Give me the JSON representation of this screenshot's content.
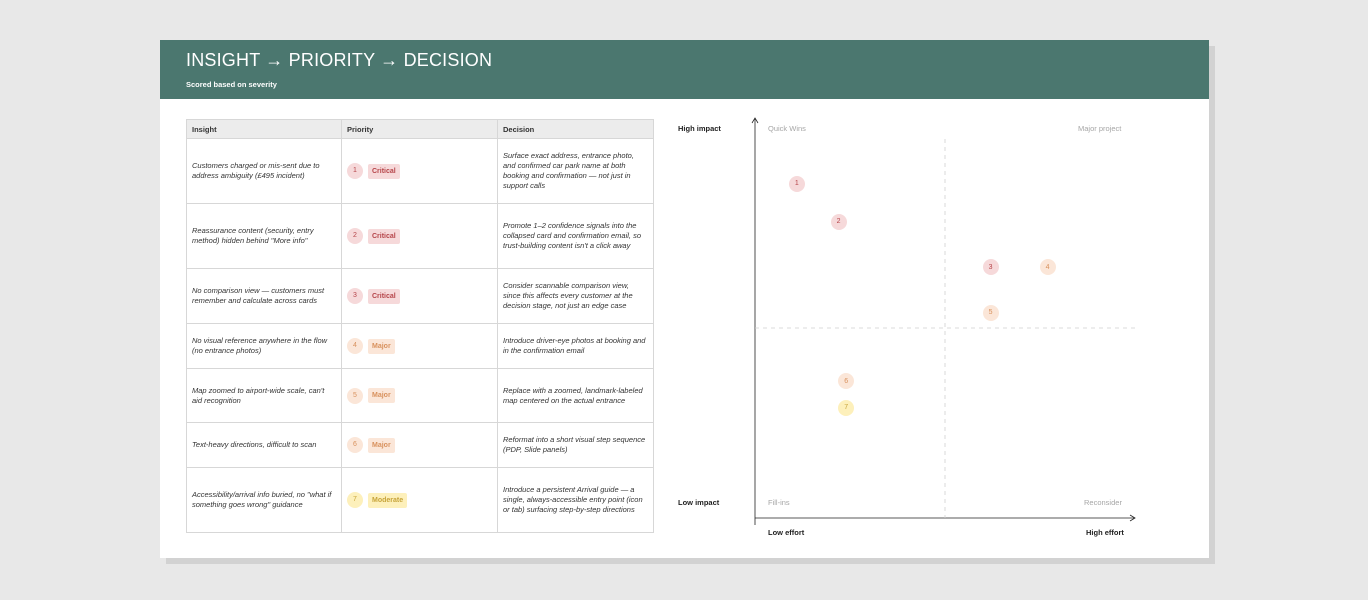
{
  "header": {
    "title": "INSIGHT → PRIORITY → DECISION",
    "subtitle": "Scored based on severity"
  },
  "table": {
    "columns": [
      "Insight",
      "Priority",
      "Decision"
    ],
    "rows": [
      {
        "num": "1",
        "insight": "Customers charged or mis-sent due to address ambiguity (£495 incident)",
        "priority": "Critical",
        "decision": "Surface exact address, entrance photo, and confirmed car park name at both booking and confirmation — not just in support calls"
      },
      {
        "num": "2",
        "insight": "Reassurance content (security, entry method) hidden behind \"More info\"",
        "priority": "Critical",
        "decision": "Promote 1–2 confidence signals into the collapsed card and confirmation email, so trust-building content isn't a click away"
      },
      {
        "num": "3",
        "insight": "No comparison view — customers must remember and calculate across cards",
        "priority": "Critical",
        "decision": "Consider scannable comparison view, since this affects every customer at the decision stage, not just an edge case"
      },
      {
        "num": "4",
        "insight": "No visual reference anywhere in the flow (no entrance photos)",
        "priority": "Major",
        "decision": "Introduce driver-eye photos at booking and in the confirmation email"
      },
      {
        "num": "5",
        "insight": "Map zoomed to airport-wide scale, can't aid recognition",
        "priority": "Major",
        "decision": "Replace with a zoomed, landmark-labeled map centered on the actual entrance"
      },
      {
        "num": "6",
        "insight": "Text-heavy directions, difficult to scan",
        "priority": "Major",
        "decision": "Reformat into a short visual step sequence (PDP, Slide panels)"
      },
      {
        "num": "7",
        "insight": "Accessibility/arrival info buried, no \"what if something goes wrong\" guidance",
        "priority": "Moderate",
        "decision": "Introduce a persistent Arrival guide — a single, always-accessible entry point (icon or tab) surfacing step-by-step directions"
      }
    ]
  },
  "priority_colors": {
    "Critical": {
      "bg": "#f6d9da",
      "fg": "#b6454a"
    },
    "Major": {
      "bg": "#fbe6d8",
      "fg": "#d8915d"
    },
    "Moderate": {
      "bg": "#fdf0bb",
      "fg": "#c7a43a"
    }
  },
  "matrix": {
    "y_high": "High impact",
    "y_low": "Low impact",
    "x_low": "Low effort",
    "x_high": "High effort",
    "quadrants": {
      "top_left": "Quick Wins",
      "top_right": "Major project",
      "bottom_left": "Fill-ins",
      "bottom_right": "Reconsider"
    },
    "points": [
      {
        "label": "1",
        "effort": 0.11,
        "impact": 0.88,
        "priority": "Critical"
      },
      {
        "label": "2",
        "effort": 0.22,
        "impact": 0.78,
        "priority": "Critical"
      },
      {
        "label": "3",
        "effort": 0.62,
        "impact": 0.66,
        "priority": "Critical"
      },
      {
        "label": "4",
        "effort": 0.77,
        "impact": 0.66,
        "priority": "Major"
      },
      {
        "label": "5",
        "effort": 0.62,
        "impact": 0.54,
        "priority": "Major"
      },
      {
        "label": "6",
        "effort": 0.24,
        "impact": 0.36,
        "priority": "Major"
      },
      {
        "label": "7",
        "effort": 0.24,
        "impact": 0.29,
        "priority": "Moderate"
      }
    ]
  }
}
